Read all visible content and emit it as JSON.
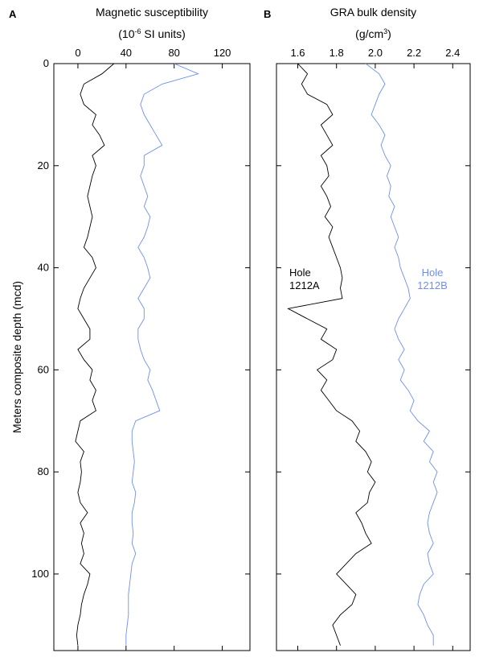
{
  "chart_data": [
    {
      "type": "line",
      "panel": "A",
      "title": "Magnetic susceptibility",
      "x_label_parts": [
        "(10",
        "-6",
        " SI units)"
      ],
      "y_label": "Meters composite depth (mcd)",
      "xlim": [
        -20,
        143
      ],
      "xticks": [
        0,
        40,
        80,
        120
      ],
      "ylim": [
        0,
        115
      ],
      "yticks": [
        0,
        20,
        40,
        60,
        80,
        100
      ],
      "y_inverted": true,
      "show_ytick_labels": true,
      "y": [
        0,
        2,
        4,
        6,
        8,
        10,
        12,
        14,
        16,
        18,
        20,
        22,
        24,
        26,
        28,
        30,
        32,
        34,
        36,
        38,
        40,
        42,
        44,
        46,
        48,
        50,
        52,
        54,
        56,
        58,
        60,
        62,
        64,
        66,
        68,
        70,
        72,
        74,
        76,
        78,
        80,
        82,
        84,
        86,
        88,
        90,
        92,
        94,
        96,
        98,
        100,
        102,
        104,
        106,
        108,
        110,
        112,
        114
      ],
      "series": [
        {
          "color": "#000000",
          "values": [
            30,
            20,
            5,
            2,
            5,
            15,
            12,
            18,
            22,
            12,
            15,
            12,
            10,
            8,
            10,
            12,
            10,
            8,
            5,
            12,
            15,
            10,
            5,
            2,
            0,
            5,
            10,
            10,
            0,
            5,
            12,
            10,
            15,
            12,
            15,
            2,
            0,
            -2,
            5,
            2,
            3,
            2,
            0,
            2,
            8,
            2,
            5,
            3,
            5,
            2,
            10,
            8,
            5,
            3,
            2,
            0,
            -1,
            0
          ]
        },
        {
          "color": "#6f8ff0",
          "values": [
            80,
            100,
            70,
            55,
            52,
            55,
            60,
            65,
            70,
            55,
            55,
            52,
            55,
            58,
            55,
            60,
            58,
            55,
            50,
            55,
            58,
            60,
            55,
            50,
            55,
            55,
            50,
            50,
            52,
            55,
            60,
            58,
            62,
            65,
            68,
            48,
            45,
            45,
            46,
            47,
            46,
            45,
            48,
            47,
            45,
            45,
            46,
            45,
            48,
            45,
            44,
            43,
            42,
            42,
            42,
            41,
            40,
            40
          ]
        }
      ]
    },
    {
      "type": "line",
      "panel": "B",
      "title": "GRA bulk density",
      "x_label_parts": [
        "(g/cm",
        "3",
        ")"
      ],
      "xlim": [
        1.49,
        2.49
      ],
      "xticks": [
        1.6,
        1.8,
        {
          "value": 2,
          "label": "2.0"
        },
        2.2,
        2.4
      ],
      "ylim": [
        0,
        115
      ],
      "yticks": [
        0,
        20,
        40,
        60,
        80,
        100
      ],
      "y_inverted": true,
      "show_ytick_labels": false,
      "y": [
        0,
        2,
        4,
        6,
        8,
        10,
        12,
        14,
        16,
        18,
        20,
        22,
        24,
        26,
        28,
        30,
        32,
        34,
        36,
        38,
        40,
        42,
        44,
        46,
        48,
        50,
        52,
        54,
        56,
        58,
        60,
        62,
        64,
        66,
        68,
        70,
        72,
        74,
        76,
        78,
        80,
        82,
        84,
        86,
        88,
        90,
        92,
        94,
        96,
        98,
        100,
        102,
        104,
        106,
        108,
        110,
        112,
        114
      ],
      "series": [
        {
          "name": "Hole 1212A",
          "label_lines": [
            "Hole",
            "1212A"
          ],
          "color": "#000000",
          "values": [
            1.6,
            1.65,
            1.62,
            1.65,
            1.75,
            1.78,
            1.72,
            1.75,
            1.78,
            1.72,
            1.75,
            1.76,
            1.72,
            1.75,
            1.77,
            1.74,
            1.78,
            1.76,
            1.78,
            1.8,
            1.82,
            1.83,
            1.82,
            1.83,
            1.55,
            1.65,
            1.75,
            1.72,
            1.8,
            1.78,
            1.7,
            1.75,
            1.72,
            1.76,
            1.8,
            1.88,
            1.92,
            1.9,
            1.95,
            1.98,
            1.96,
            2.0,
            1.97,
            1.96,
            1.9,
            1.93,
            1.95,
            1.98,
            1.9,
            1.85,
            1.8,
            1.85,
            1.9,
            1.88,
            1.82,
            1.78,
            1.8,
            1.82
          ]
        },
        {
          "name": "Hole 1212B",
          "label_lines": [
            "Hole",
            "1212B"
          ],
          "color": "#6f8ff0",
          "values": [
            1.95,
            2.02,
            2.05,
            2.02,
            2.0,
            1.98,
            2.02,
            2.05,
            2.03,
            2.05,
            2.08,
            2.06,
            2.08,
            2.07,
            2.1,
            2.08,
            2.1,
            2.12,
            2.1,
            2.12,
            2.13,
            2.15,
            2.17,
            2.18,
            2.15,
            2.12,
            2.1,
            2.12,
            2.15,
            2.12,
            2.15,
            2.13,
            2.17,
            2.2,
            2.18,
            2.22,
            2.28,
            2.25,
            2.3,
            2.28,
            2.32,
            2.3,
            2.32,
            2.3,
            2.28,
            2.27,
            2.28,
            2.3,
            2.27,
            2.28,
            2.3,
            2.25,
            2.23,
            2.22,
            2.25,
            2.27,
            2.3,
            2.3
          ]
        }
      ]
    }
  ]
}
